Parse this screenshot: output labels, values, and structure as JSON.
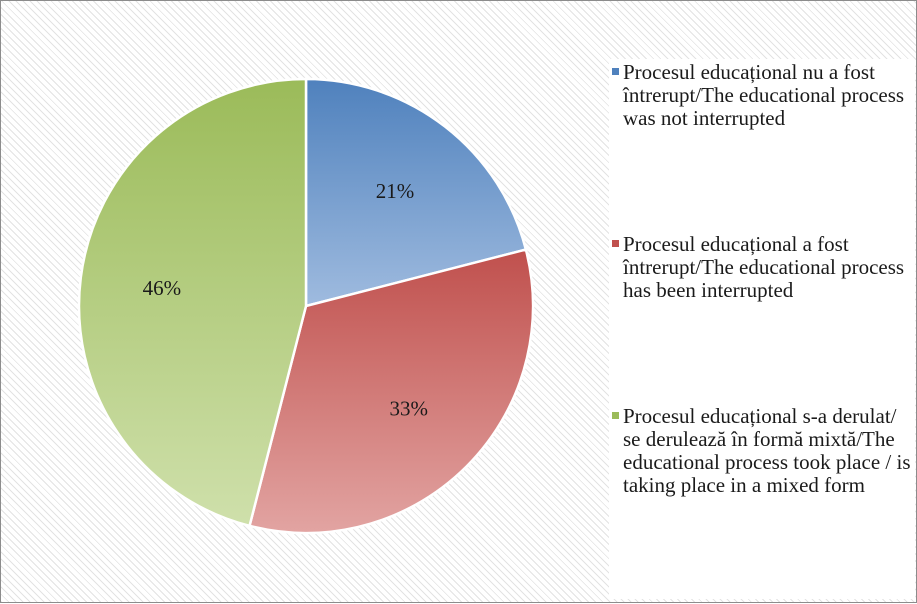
{
  "chart_data": {
    "type": "pie",
    "slices": [
      {
        "label": "Procesul educațional nu a fost întrerupt/The educational process was not interrupted",
        "value": 21,
        "display": "21%",
        "color": "#4f81bd"
      },
      {
        "label": "Procesul educațional a fost întrerupt/The educational process has been interrupted",
        "value": 33,
        "display": "33%",
        "color": "#c0504d"
      },
      {
        "label": "Procesul educațional s-a derulat/ se derulează în formă mixtă/The educational process took place / is taking place in a mixed form",
        "value": 46,
        "display": "46%",
        "color": "#9bbb59"
      }
    ],
    "legend_position": "right"
  }
}
